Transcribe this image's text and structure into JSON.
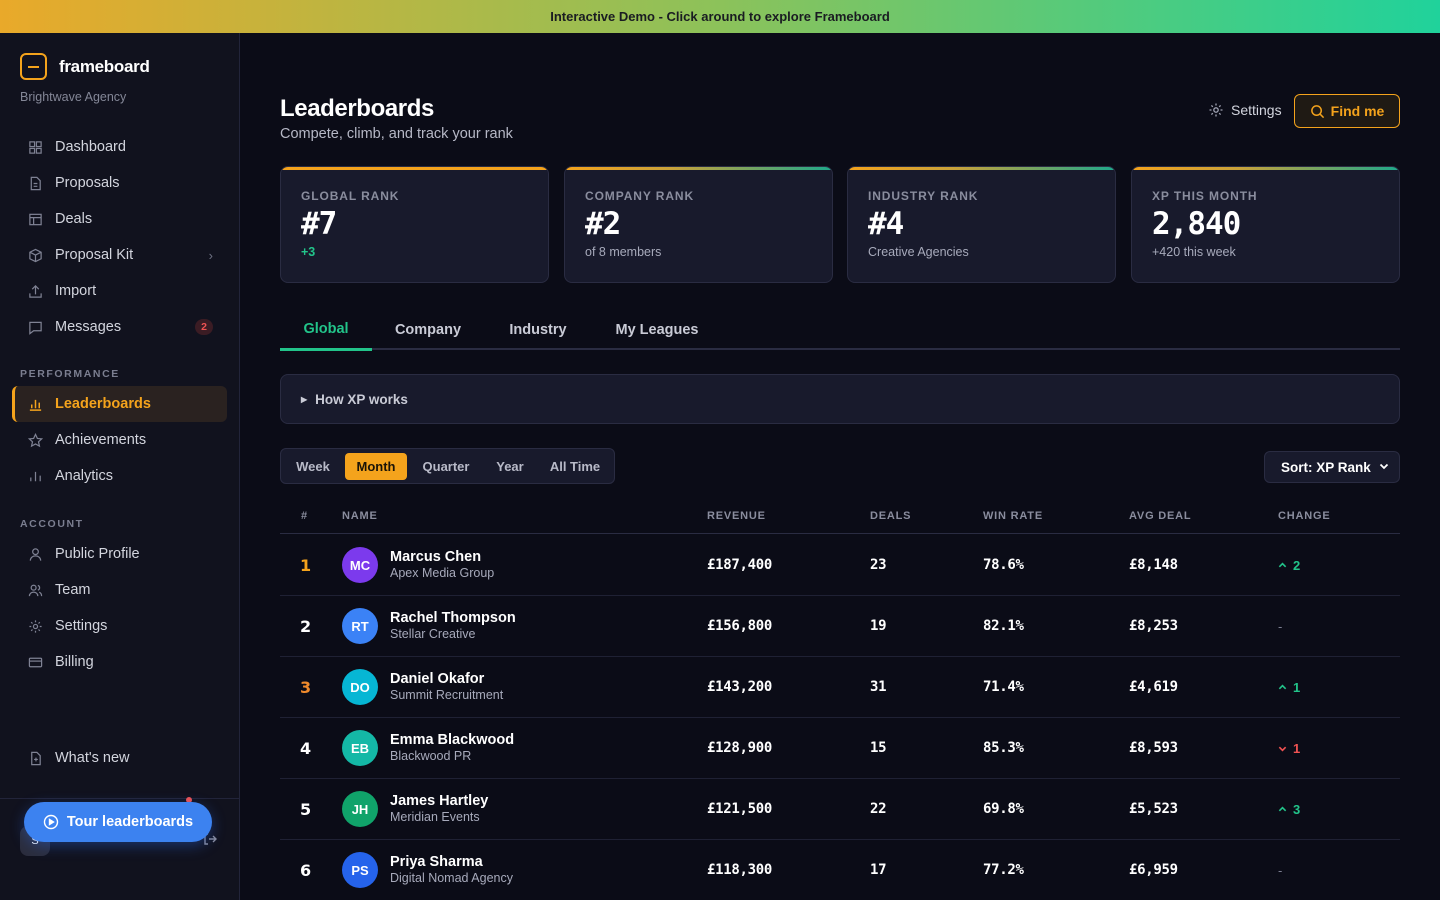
{
  "banner": "Interactive Demo - Click around to explore Frameboard",
  "brand": {
    "name": "frameboard",
    "agency": "Brightwave Agency"
  },
  "nav": {
    "main": [
      {
        "label": "Dashboard",
        "icon": "grid-icon"
      },
      {
        "label": "Proposals",
        "icon": "document-icon"
      },
      {
        "label": "Deals",
        "icon": "table-icon"
      },
      {
        "label": "Proposal Kit",
        "icon": "box-icon",
        "chevron": "›"
      },
      {
        "label": "Import",
        "icon": "upload-icon"
      },
      {
        "label": "Messages",
        "icon": "chat-icon",
        "badge": "2"
      }
    ],
    "performance_label": "PERFORMANCE",
    "performance": [
      {
        "label": "Leaderboards",
        "icon": "bar-chart-icon",
        "active": true
      },
      {
        "label": "Achievements",
        "icon": "star-icon"
      },
      {
        "label": "Analytics",
        "icon": "analytics-icon"
      }
    ],
    "account_label": "ACCOUNT",
    "account": [
      {
        "label": "Public Profile",
        "icon": "user-icon"
      },
      {
        "label": "Team",
        "icon": "users-icon"
      },
      {
        "label": "Settings",
        "icon": "gear-icon"
      },
      {
        "label": "Billing",
        "icon": "card-icon"
      }
    ],
    "whats_new": "What's new"
  },
  "footer": {
    "avatar": "S",
    "tour_label": "Tour leaderboards"
  },
  "header": {
    "title": "Leaderboards",
    "subtitle": "Compete, climb, and track your rank",
    "settings_label": "Settings",
    "findme_label": "Find me"
  },
  "stats": [
    {
      "label": "GLOBAL RANK",
      "value": "#7",
      "sub": "+3",
      "positive": true
    },
    {
      "label": "COMPANY RANK",
      "value": "#2",
      "sub": "of 8 members"
    },
    {
      "label": "INDUSTRY RANK",
      "value": "#4",
      "sub": "Creative Agencies"
    },
    {
      "label": "XP THIS MONTH",
      "value": "2,840",
      "sub": "+420 this week"
    }
  ],
  "tabs": [
    "Global",
    "Company",
    "Industry",
    "My Leagues"
  ],
  "active_tab": "Global",
  "how_xp": "How XP works",
  "periods": [
    "Week",
    "Month",
    "Quarter",
    "Year",
    "All Time"
  ],
  "active_period": "Month",
  "sort_label": "Sort: XP Rank",
  "columns": [
    "#",
    "NAME",
    "REVENUE",
    "DEALS",
    "WIN RATE",
    "AVG DEAL",
    "CHANGE"
  ],
  "rows": [
    {
      "rank": "1",
      "initials": "MC",
      "color": "#7c3aed",
      "name": "Marcus Chen",
      "company": "Apex Media Group",
      "revenue": "£187,400",
      "deals": "23",
      "win_rate": "78.6%",
      "avg_deal": "£8,148",
      "change": "2",
      "dir": "up"
    },
    {
      "rank": "2",
      "initials": "RT",
      "color": "#3b82f6",
      "name": "Rachel Thompson",
      "company": "Stellar Creative",
      "revenue": "£156,800",
      "deals": "19",
      "win_rate": "82.1%",
      "avg_deal": "£8,253",
      "change": "-",
      "dir": "flat"
    },
    {
      "rank": "3",
      "initials": "DO",
      "color": "#06b6d4",
      "name": "Daniel Okafor",
      "company": "Summit Recruitment",
      "revenue": "£143,200",
      "deals": "31",
      "win_rate": "71.4%",
      "avg_deal": "£4,619",
      "change": "1",
      "dir": "up"
    },
    {
      "rank": "4",
      "initials": "EB",
      "color": "#14b8a6",
      "name": "Emma Blackwood",
      "company": "Blackwood PR",
      "revenue": "£128,900",
      "deals": "15",
      "win_rate": "85.3%",
      "avg_deal": "£8,593",
      "change": "1",
      "dir": "down"
    },
    {
      "rank": "5",
      "initials": "JH",
      "color": "#10a36a",
      "name": "James Hartley",
      "company": "Meridian Events",
      "revenue": "£121,500",
      "deals": "22",
      "win_rate": "69.8%",
      "avg_deal": "£5,523",
      "change": "3",
      "dir": "up"
    },
    {
      "rank": "6",
      "initials": "PS",
      "color": "#2563eb",
      "name": "Priya Sharma",
      "company": "Digital Nomad Agency",
      "revenue": "£118,300",
      "deals": "17",
      "win_rate": "77.2%",
      "avg_deal": "£6,959",
      "change": "-",
      "dir": "flat"
    }
  ],
  "colors": {
    "accent": "#f4a31c",
    "positive": "#22c48a",
    "negative": "#f05252",
    "background": "#0b0c17"
  }
}
